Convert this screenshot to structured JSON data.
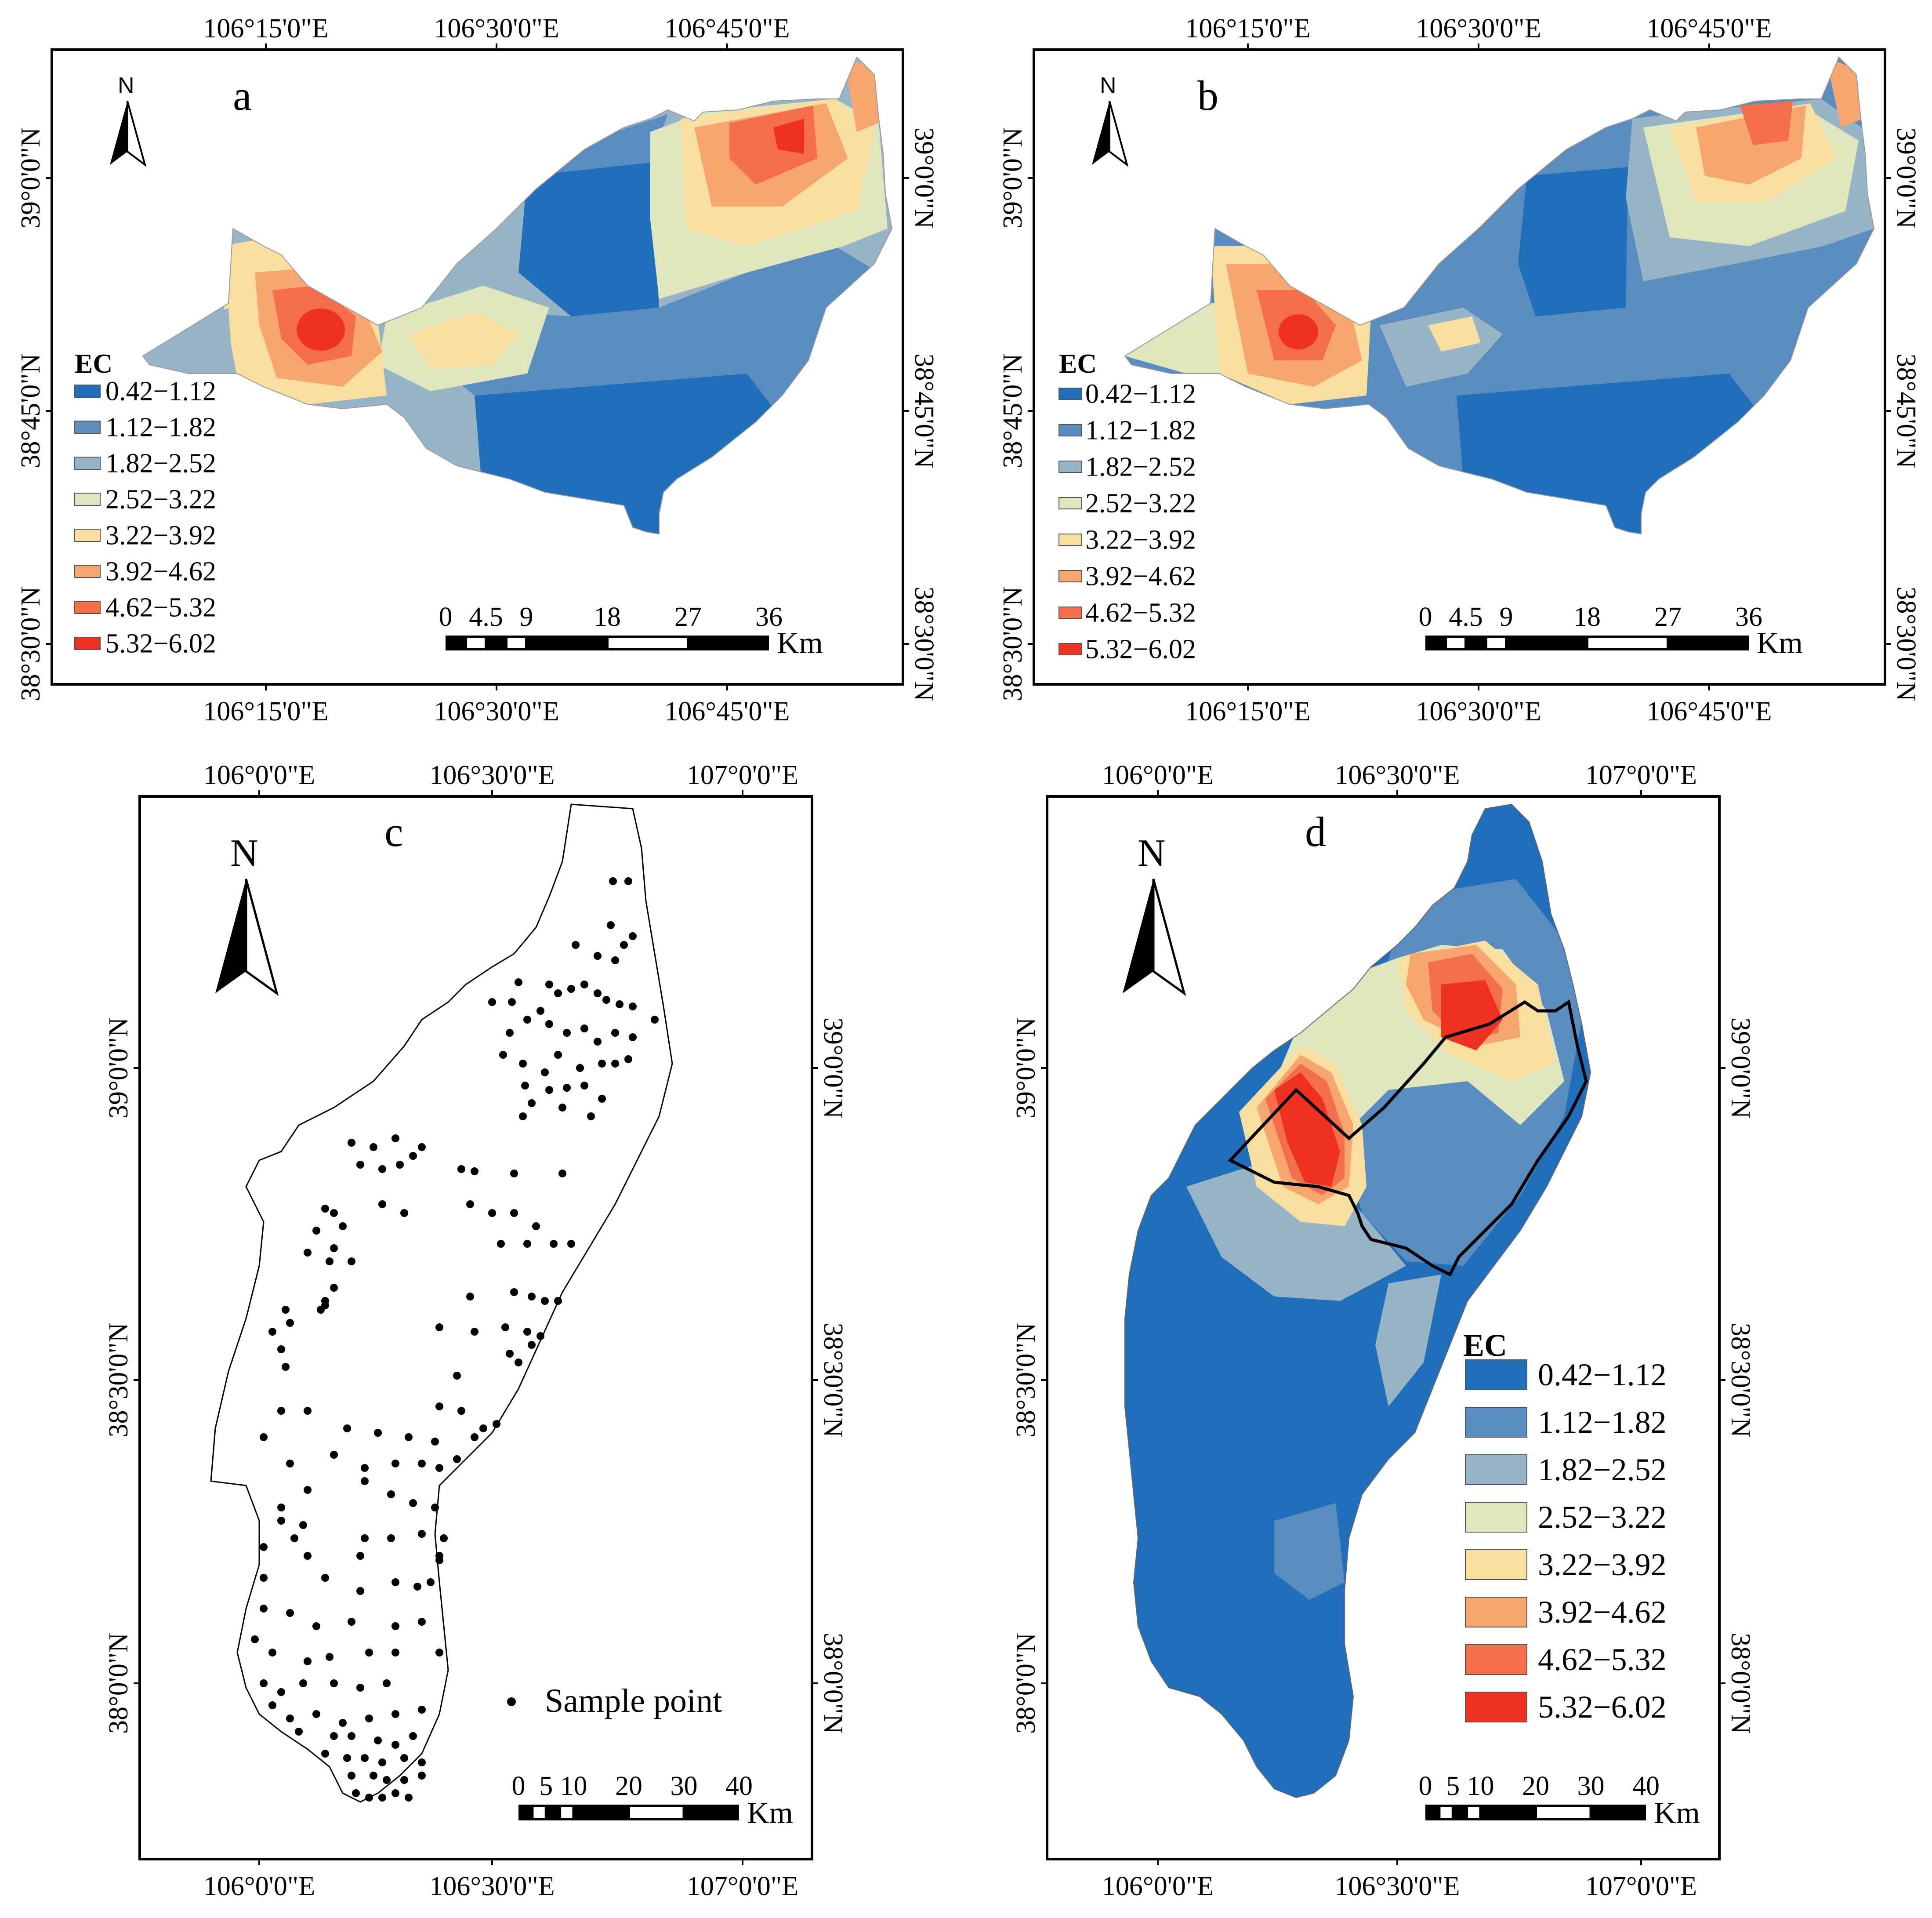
{
  "palette": [
    "#1f6fbb",
    "#5a8dbf",
    "#97b3c6",
    "#dfe6bd",
    "#f8dfa0",
    "#f6a66e",
    "#f36f4c",
    "#ef3124"
  ],
  "legend_classes": [
    "0.42−1.12",
    "1.12−1.82",
    "1.82−2.52",
    "2.52−3.22",
    "3.22−3.92",
    "3.92−4.62",
    "4.62−5.32",
    "5.32−6.02"
  ],
  "legend_title": "EC",
  "north_label": "N",
  "panels": {
    "a": {
      "letter": "a",
      "lon_ticks": [
        "106°15'0\"E",
        "106°30'0\"E",
        "106°45'0\"E"
      ],
      "lat_ticks": [
        "39°0'0\"N",
        "38°45'0\"N",
        "38°30'0\"N"
      ],
      "scale": {
        "labels": [
          "0",
          "4.5",
          "9",
          "18",
          "27",
          "36"
        ],
        "unit": "Km"
      }
    },
    "b": {
      "letter": "b",
      "lon_ticks": [
        "106°15'0\"E",
        "106°30'0\"E",
        "106°45'0\"E"
      ],
      "lat_ticks": [
        "39°0'0\"N",
        "38°45'0\"N",
        "38°30'0\"N"
      ],
      "scale": {
        "labels": [
          "0",
          "4.5",
          "9",
          "18",
          "27",
          "36"
        ],
        "unit": "Km"
      }
    },
    "c": {
      "letter": "c",
      "lon_ticks": [
        "106°0'0\"E",
        "106°30'0\"E",
        "107°0'0\"E"
      ],
      "lat_ticks": [
        "39°0'0\"N",
        "38°30'0\"N",
        "38°0'0\"N"
      ],
      "legend_label": "Sample point",
      "scale": {
        "labels": [
          "0",
          "5",
          "10",
          "20",
          "30",
          "40"
        ],
        "unit": "Km"
      }
    },
    "d": {
      "letter": "d",
      "lon_ticks": [
        "106°0'0\"E",
        "106°30'0\"E",
        "107°0'0\"E"
      ],
      "lat_ticks": [
        "39°0'0\"N",
        "38°30'0\"N",
        "38°0'0\"N"
      ],
      "scale": {
        "labels": [
          "0",
          "5",
          "10",
          "20",
          "30",
          "40"
        ],
        "unit": "Km"
      }
    }
  }
}
